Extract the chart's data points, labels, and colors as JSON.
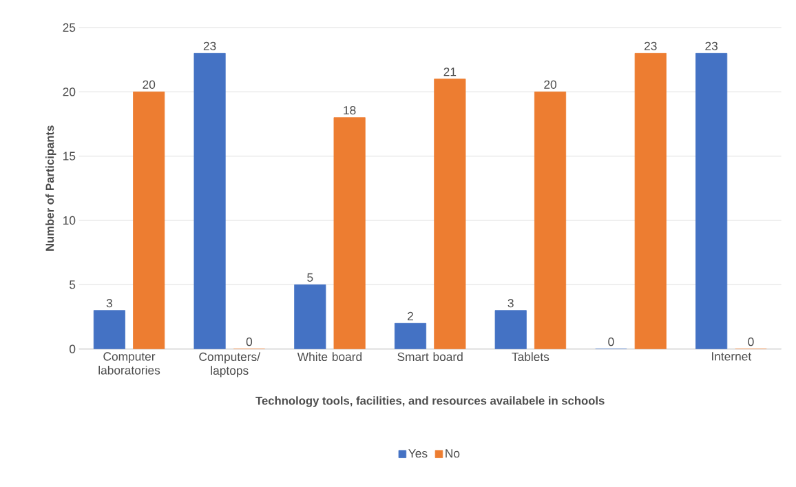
{
  "chart_data": {
    "type": "bar",
    "xlabel": "Technology tools, facilities, and resources availabele in schools",
    "ylabel": "Number of Participants",
    "categories": [
      "Computer laboratories",
      "Computers/ laptops",
      "White board",
      "Smart board",
      "Tablets",
      null,
      "Internet"
    ],
    "series": [
      {
        "name": "Yes",
        "color": "#4472c4",
        "values": [
          3,
          23,
          5,
          2,
          3,
          0,
          23
        ]
      },
      {
        "name": "No",
        "color": "#ed7d31",
        "values": [
          20,
          0,
          18,
          21,
          20,
          23,
          0
        ]
      }
    ],
    "ylim": [
      0,
      25
    ],
    "yticks": [
      0,
      5,
      10,
      15,
      20,
      25
    ],
    "grid": "y",
    "legend": "bottom",
    "data_labels": true
  }
}
